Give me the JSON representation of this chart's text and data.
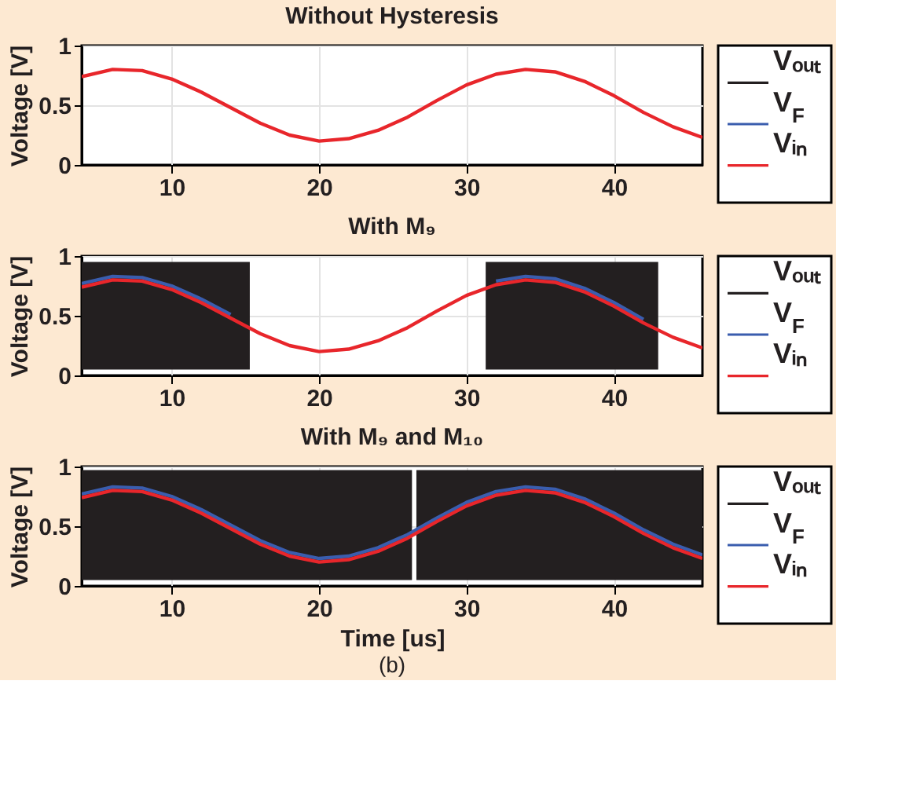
{
  "chart_data": [
    {
      "type": "line",
      "title": "Without Hysteresis",
      "ylabel": "Voltage [V]",
      "xlim": [
        3.9,
        46
      ],
      "xticks": [
        10,
        20,
        30,
        40
      ],
      "ylim": [
        0,
        1
      ],
      "yticks": [
        0,
        0.5,
        1
      ],
      "grid": true,
      "legend": "right",
      "line_style": "solid",
      "x": [
        3.9,
        6,
        8,
        10,
        12,
        14,
        16,
        18,
        20,
        22,
        24,
        26,
        28,
        30,
        32,
        34,
        36,
        38,
        40,
        42,
        44,
        46
      ],
      "series": [
        {
          "name": "Vₒᵤₜ",
          "color": "#231f20",
          "values": [
            null,
            null,
            null,
            null,
            null,
            null,
            null,
            null,
            null,
            null,
            null,
            null,
            null,
            null,
            null,
            null,
            null,
            null,
            null,
            null,
            null,
            null
          ]
        },
        {
          "name": "V$_{F}$",
          "color": "#3a5dae",
          "values": [
            null,
            null,
            null,
            null,
            null,
            null,
            null,
            null,
            null,
            null,
            null,
            null,
            null,
            null,
            null,
            null,
            null,
            null,
            null,
            null,
            null,
            null
          ]
        },
        {
          "name": "Vᵢₙ",
          "color": "#e8262b",
          "values": [
            0.74,
            0.8,
            0.79,
            0.72,
            0.61,
            0.48,
            0.35,
            0.25,
            0.2,
            0.22,
            0.29,
            0.4,
            0.54,
            0.67,
            0.76,
            0.8,
            0.78,
            0.7,
            0.58,
            0.44,
            0.32,
            0.23
          ]
        }
      ]
    },
    {
      "type": "line",
      "title": "With M₉",
      "ylabel": "Voltage [V]",
      "xlim": [
        3.9,
        46
      ],
      "xticks": [
        10,
        20,
        30,
        40
      ],
      "ylim": [
        0,
        1
      ],
      "yticks": [
        0,
        0.5,
        1
      ],
      "grid": true,
      "legend": "right",
      "line_style": "solid",
      "x": [
        3.9,
        6,
        8,
        10,
        12,
        14,
        16,
        18,
        20,
        22,
        24,
        26,
        28,
        30,
        32,
        34,
        36,
        38,
        40,
        42,
        44,
        46
      ],
      "series": [
        {
          "name": "Vₒᵤₜ",
          "color": "#231f20",
          "x": [
            3.9,
            15.3,
            23,
            31.3,
            43.0
          ],
          "values": [
            null,
            null,
            null,
            null,
            null
          ],
          "lower": [
            0.05,
            0.05,
            null,
            0.05,
            0.05
          ],
          "upper": [
            0.95,
            0.95,
            null,
            0.95,
            0.95
          ]
        },
        {
          "name": "V$_{F}$",
          "color": "#3a5dae",
          "values": [
            0.77,
            0.83,
            0.82,
            0.75,
            0.64,
            0.51,
            null,
            null,
            null,
            null,
            null,
            null,
            null,
            null,
            0.79,
            0.83,
            0.81,
            0.73,
            0.61,
            0.47,
            null,
            null
          ]
        },
        {
          "name": "Vᵢₙ",
          "color": "#e8262b",
          "values": [
            0.74,
            0.8,
            0.79,
            0.72,
            0.61,
            0.48,
            0.35,
            0.25,
            0.2,
            0.22,
            0.29,
            0.4,
            0.54,
            0.67,
            0.76,
            0.8,
            0.78,
            0.7,
            0.58,
            0.44,
            0.32,
            0.23
          ]
        }
      ]
    },
    {
      "type": "line",
      "title": "With M₉ and M₁₀",
      "ylabel": "Voltage [V]",
      "xlabel": "Time [us]",
      "xlim": [
        3.9,
        46
      ],
      "xticks": [
        10,
        20,
        30,
        40
      ],
      "ylim": [
        0,
        1
      ],
      "yticks": [
        0,
        0.5,
        1
      ],
      "grid": true,
      "legend": "right",
      "line_style": "solid",
      "annotations": [
        "(b)"
      ],
      "x": [
        3.9,
        6,
        8,
        10,
        12,
        14,
        16,
        18,
        20,
        22,
        24,
        26,
        28,
        30,
        32,
        34,
        36,
        38,
        40,
        42,
        44,
        46
      ],
      "series": [
        {
          "name": "Vₒᵤₜ",
          "color": "#231f20",
          "x": [
            3.9,
            26.3,
            26.45,
            26.6,
            46
          ],
          "values": [
            null,
            null,
            null,
            null,
            null
          ],
          "lower": [
            0.05,
            0.05,
            null,
            0.05,
            0.05
          ],
          "upper": [
            0.97,
            0.97,
            null,
            0.97,
            0.97
          ]
        },
        {
          "name": "V$_{F}$",
          "color": "#3a5dae",
          "values": [
            0.77,
            0.83,
            0.82,
            0.75,
            0.64,
            0.51,
            0.38,
            0.28,
            0.23,
            0.25,
            0.32,
            0.43,
            0.57,
            0.7,
            0.79,
            0.83,
            0.81,
            0.73,
            0.61,
            0.47,
            0.35,
            0.26
          ]
        },
        {
          "name": "Vᵢₙ",
          "color": "#e8262b",
          "values": [
            0.74,
            0.8,
            0.79,
            0.72,
            0.61,
            0.48,
            0.35,
            0.25,
            0.2,
            0.22,
            0.29,
            0.4,
            0.54,
            0.67,
            0.76,
            0.8,
            0.78,
            0.7,
            0.58,
            0.44,
            0.32,
            0.23
          ]
        }
      ]
    }
  ]
}
